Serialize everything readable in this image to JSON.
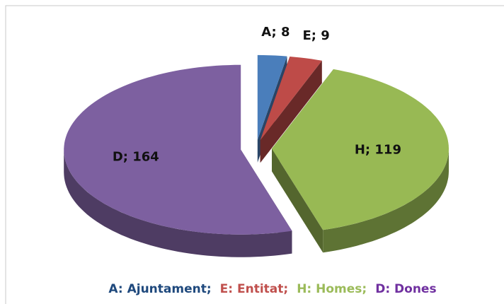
{
  "chart_data": {
    "type": "pie3d",
    "values": [
      8,
      9,
      119,
      164
    ],
    "value_labels": [
      "A; 8",
      "E; 9",
      "H; 119",
      "D; 164"
    ],
    "colors": [
      "#4a7ebb",
      "#be4b48",
      "#98b954",
      "#7d60a0"
    ],
    "legend": {
      "entries": [
        "A: Ajuntament;",
        "E: Entitat;",
        "H: Homes;",
        "D: Dones"
      ],
      "colors": [
        "#1f497d",
        "#c0504d",
        "#9bbb59",
        "#7030a0"
      ]
    }
  }
}
